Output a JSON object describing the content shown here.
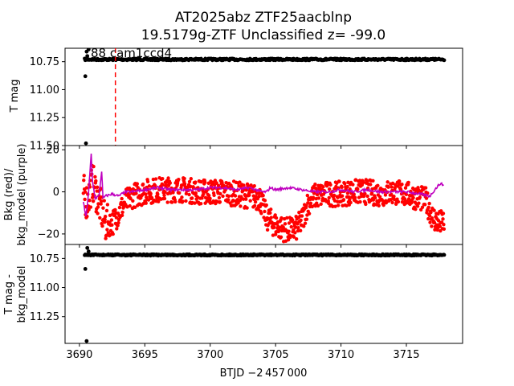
{
  "chart_data": {
    "type": "scatter",
    "title_line1": "AT2025abz  ZTF25aacblnp",
    "title_line2": "19.5179g-ZTF Unclassified z= -99.0",
    "xlabel": "BTJD −2 457 000",
    "xlim": [
      3688.9,
      3719.3
    ],
    "x_ticks": [
      3690,
      3695,
      3700,
      3705,
      3710,
      3715
    ],
    "x_tick_labels": [
      "3690",
      "3695",
      "3700",
      "3705",
      "3710",
      "3715"
    ],
    "marker_x": 3692.75,
    "marker_color": "#ff0000",
    "dot_color": "#000000",
    "bkg_dot_color": "#ff0000",
    "bkg_model_color": "#bf00bf",
    "panels": [
      {
        "id": "top",
        "ylabel": "T mag",
        "ylim": [
          11.5,
          10.63
        ],
        "y_ticks": [
          10.75,
          11.0,
          11.25,
          11.5
        ],
        "y_tick_labels": [
          "10.75",
          "11.00",
          "11.25",
          "11.50"
        ],
        "annotation": "88 cam1ccd4",
        "series": [
          {
            "name": "",
            "x_start": 3690.4,
            "x_end": 3717.9,
            "y_level": 10.73,
            "scatter": 0.008
          },
          {
            "name": "",
            "outliers_x": [
              3690.45,
              3690.5,
              3690.55,
              3690.6,
              3690.7
            ],
            "outliers_y": [
              10.88,
              11.48,
              10.66,
              10.7,
              10.64
            ]
          }
        ]
      },
      {
        "id": "middle",
        "ylabel_line1": "Bkg (red)/",
        "ylabel_line2": "bkg_model (purple)",
        "ylim": [
          -25,
          22
        ],
        "y_ticks": [
          -20,
          0,
          20
        ],
        "y_tick_labels": [
          "−20",
          "0",
          "20"
        ],
        "bkg_profile": [
          [
            3690.3,
            0
          ],
          [
            3690.6,
            -5
          ],
          [
            3691.0,
            5
          ],
          [
            3691.5,
            -5
          ],
          [
            3692.0,
            -15
          ],
          [
            3692.5,
            -15
          ],
          [
            3693.0,
            -10
          ],
          [
            3693.5,
            -5
          ],
          [
            3694.0,
            -2
          ],
          [
            3695.0,
            0
          ],
          [
            3696.0,
            1
          ],
          [
            3697.0,
            1
          ],
          [
            3698.0,
            1
          ],
          [
            3699.0,
            0
          ],
          [
            3700.0,
            0
          ],
          [
            3701.0,
            0
          ],
          [
            3702.0,
            -1
          ],
          [
            3703.0,
            -2
          ],
          [
            3703.8,
            -3
          ],
          [
            3704.3,
            -12
          ],
          [
            3704.8,
            -15
          ],
          [
            3705.3,
            -17
          ],
          [
            3705.8,
            -18
          ],
          [
            3706.5,
            -18
          ],
          [
            3707.0,
            -14
          ],
          [
            3707.5,
            -5
          ],
          [
            3708.0,
            -2
          ],
          [
            3709.0,
            -1
          ],
          [
            3710.0,
            -1
          ],
          [
            3711.0,
            0
          ],
          [
            3712.0,
            0
          ],
          [
            3713.0,
            -1
          ],
          [
            3714.0,
            0
          ],
          [
            3715.0,
            -1
          ],
          [
            3716.0,
            -3
          ],
          [
            3716.5,
            -4
          ],
          [
            3717.0,
            -12
          ],
          [
            3717.5,
            -15
          ],
          [
            3717.9,
            -14
          ]
        ],
        "bkg_model": [
          [
            3690.3,
            -5
          ],
          [
            3690.5,
            -12
          ],
          [
            3690.7,
            0
          ],
          [
            3690.9,
            18
          ],
          [
            3691.0,
            5
          ],
          [
            3691.2,
            -3
          ],
          [
            3691.5,
            -2
          ],
          [
            3691.7,
            10
          ],
          [
            3691.8,
            -3
          ],
          [
            3692.0,
            -2
          ],
          [
            3692.5,
            -1
          ],
          [
            3693.0,
            -2
          ],
          [
            3693.5,
            0
          ],
          [
            3694.0,
            0
          ],
          [
            3695.0,
            1
          ],
          [
            3696.0,
            2
          ],
          [
            3697.0,
            1
          ],
          [
            3698.0,
            1
          ],
          [
            3699.0,
            1
          ],
          [
            3700.0,
            2
          ],
          [
            3701.0,
            2
          ],
          [
            3702.0,
            1
          ],
          [
            3703.0,
            2
          ],
          [
            3704.0,
            0
          ],
          [
            3704.3,
            0
          ],
          [
            3704.6,
            2
          ],
          [
            3705.0,
            1
          ],
          [
            3706.0,
            2
          ],
          [
            3707.0,
            1
          ],
          [
            3708.0,
            0
          ],
          [
            3709.0,
            0
          ],
          [
            3710.0,
            1
          ],
          [
            3711.0,
            0
          ],
          [
            3712.0,
            1
          ],
          [
            3713.0,
            0
          ],
          [
            3714.0,
            0
          ],
          [
            3715.0,
            0
          ],
          [
            3716.0,
            -1
          ],
          [
            3716.8,
            -2
          ],
          [
            3717.3,
            2
          ],
          [
            3717.6,
            4
          ],
          [
            3717.9,
            3
          ]
        ]
      },
      {
        "id": "bottom",
        "ylabel_line1": "T mag -",
        "ylabel_line2": "bkg_model",
        "ylim": [
          11.48,
          10.63
        ],
        "y_ticks": [
          10.75,
          11.0,
          11.25
        ],
        "y_tick_labels": [
          "10.75",
          "11.00",
          "11.25"
        ],
        "series": [
          {
            "name": "",
            "x_start": 3690.4,
            "x_end": 3717.9,
            "y_level": 10.72,
            "scatter": 0.006
          },
          {
            "name": "",
            "outliers_x": [
              3690.45,
              3690.55,
              3690.6,
              3690.7
            ],
            "outliers_y": [
              10.84,
              11.46,
              10.66,
              10.69
            ]
          }
        ]
      }
    ]
  }
}
